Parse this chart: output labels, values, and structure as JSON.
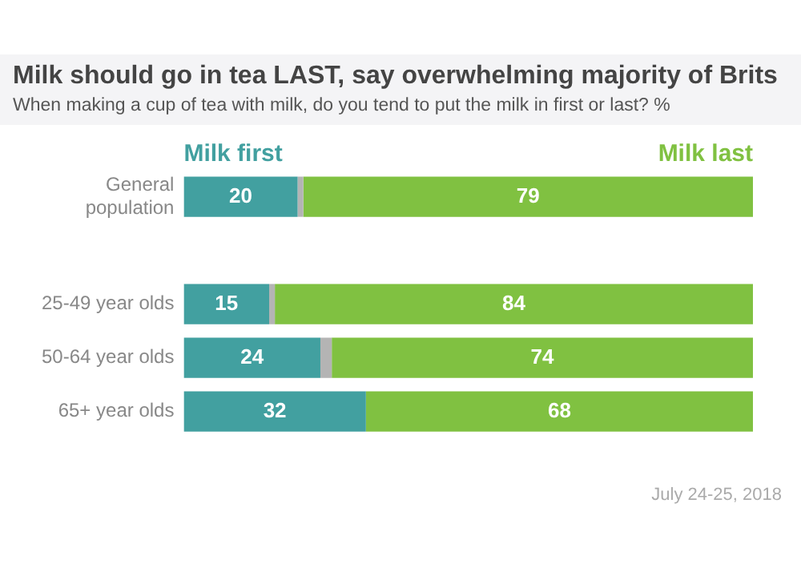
{
  "chart_data": {
    "type": "bar",
    "orientation": "horizontal",
    "stacked": true,
    "title": "Milk should go in tea LAST, say overwhelming majority of Brits",
    "subtitle": "When making a cup of tea with milk, do you tend to put the milk in first or last? %",
    "categories": [
      "General population",
      null,
      "25-49 year olds",
      "50-64 year olds",
      "65+ year olds"
    ],
    "series": [
      {
        "name": "Milk first",
        "color": "#42a0a0",
        "values": [
          20,
          null,
          15,
          24,
          32
        ],
        "value_labels": [
          "20",
          null,
          "15",
          "24",
          "32"
        ]
      },
      {
        "color": "#b4b4b4",
        "values": [
          1,
          null,
          1,
          2,
          0
        ]
      },
      {
        "name": "Milk last",
        "color": "#80c141",
        "values": [
          79,
          null,
          84,
          74,
          68
        ],
        "value_labels": [
          "79",
          null,
          "84",
          "74",
          "68"
        ]
      }
    ],
    "legend": false,
    "annotations": [
      "July 24-25, 2018"
    ]
  }
}
